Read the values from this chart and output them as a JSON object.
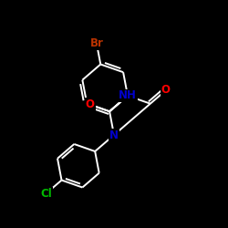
{
  "background_color": "#000000",
  "bond_color": "#ffffff",
  "atom_colors": {
    "O": "#ff0000",
    "N": "#0000cc",
    "NH": "#0000cc",
    "Cl": "#00bb00",
    "Br": "#bb3300"
  },
  "font_size": 8.5,
  "line_width": 1.4,
  "figure_size": [
    2.5,
    2.5
  ],
  "dpi": 100,
  "xlim": [
    0,
    10
  ],
  "ylim": [
    0,
    10
  ],
  "ring_r": 1.05
}
